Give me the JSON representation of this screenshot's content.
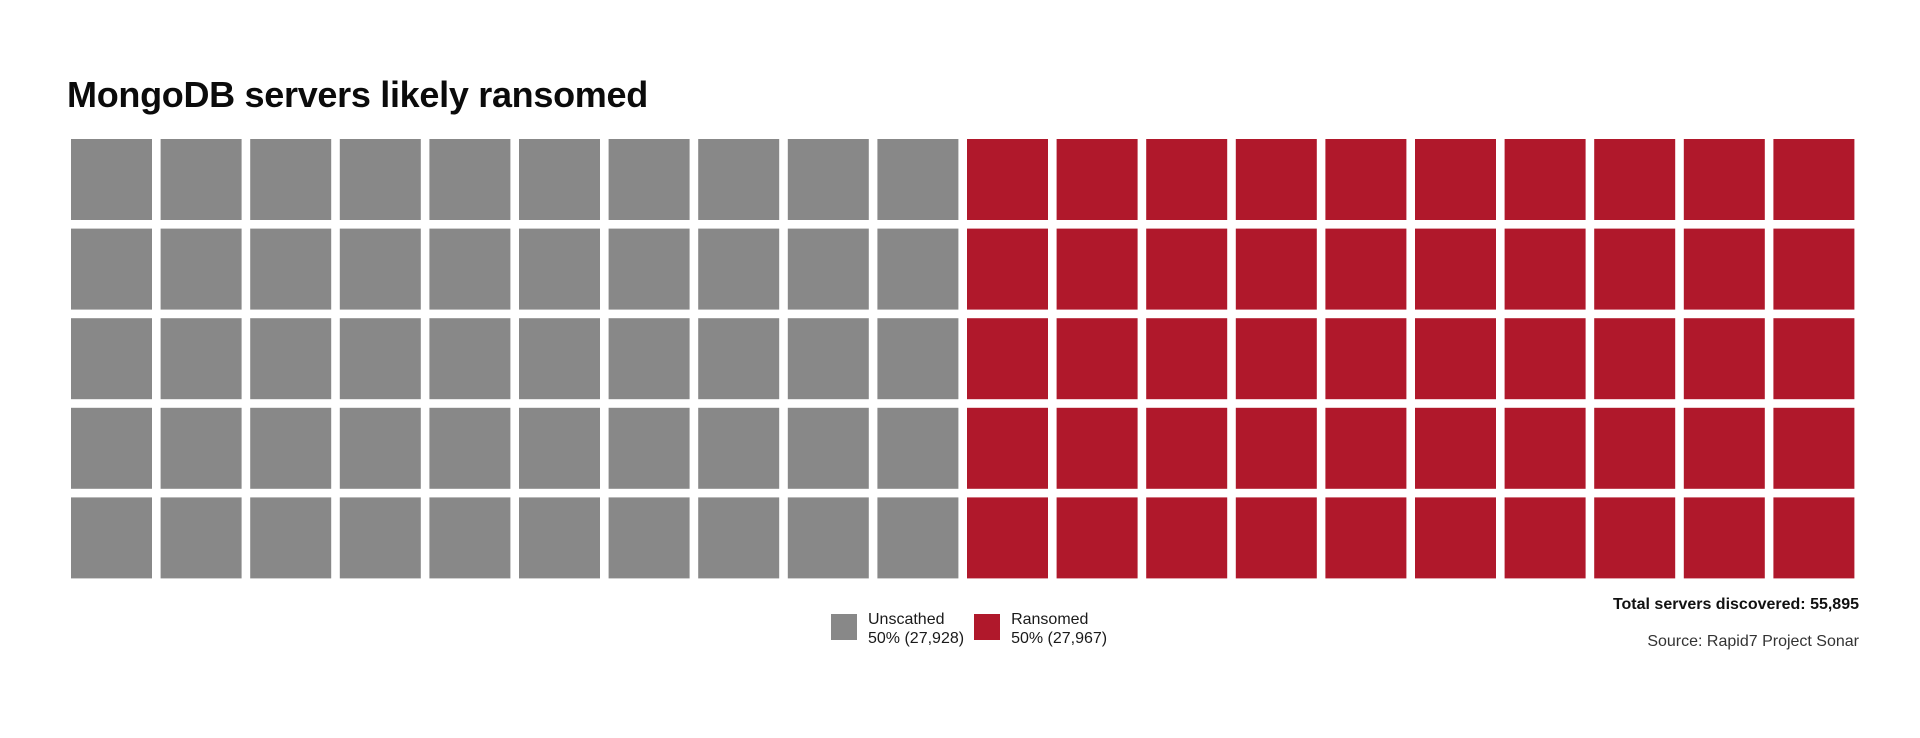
{
  "chart_data": {
    "type": "waffle",
    "title": "MongoDB servers likely ransomed",
    "rows": 5,
    "columns": 20,
    "categories": [
      {
        "name": "Unscathed",
        "percent_label": "50% (27,928)",
        "value": 27928,
        "percent": 50,
        "color": "#888888"
      },
      {
        "name": "Ransomed",
        "percent_label": "50% (27,967)",
        "value": 27967,
        "percent": 50,
        "color": "#b0182b"
      }
    ],
    "total_label": "Total servers discovered: 55,895",
    "total": 55895,
    "source": "Source: Rapid7 Project Sonar",
    "legend_position": "bottom-center"
  }
}
